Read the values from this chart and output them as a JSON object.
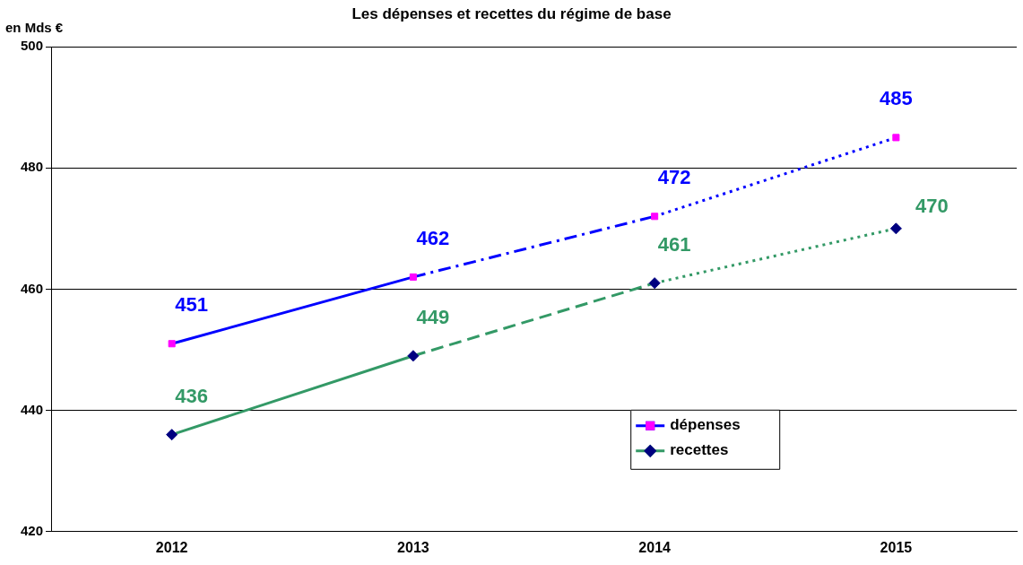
{
  "chart_data": {
    "type": "line",
    "title": "Les dépenses et recettes du régime de base",
    "ylabel": "en Mds €",
    "categories": [
      "2012",
      "2013",
      "2014",
      "2015"
    ],
    "series": [
      {
        "name": "dépenses",
        "color": "#0000ff",
        "colors": [
          "#ff00ff",
          "#ff00ff",
          "#ff00ff",
          "#ff00ff"
        ],
        "marker": "square",
        "line_style": [
          "solid",
          "dashdot",
          "dotted"
        ],
        "values": [
          451,
          462,
          472,
          485
        ]
      },
      {
        "name": "recettes",
        "color": "#339966",
        "colors": [
          "#000080",
          "#000080",
          "#000080",
          "#000080"
        ],
        "marker": "diamond",
        "line_style": [
          "solid",
          "dashed",
          "dotted"
        ],
        "values": [
          436,
          449,
          461,
          470
        ]
      }
    ],
    "ylim": [
      420,
      500
    ],
    "yticks": [
      420,
      440,
      460,
      480,
      500
    ],
    "grid": "y",
    "legend": "bottom right",
    "data_labels": true
  }
}
